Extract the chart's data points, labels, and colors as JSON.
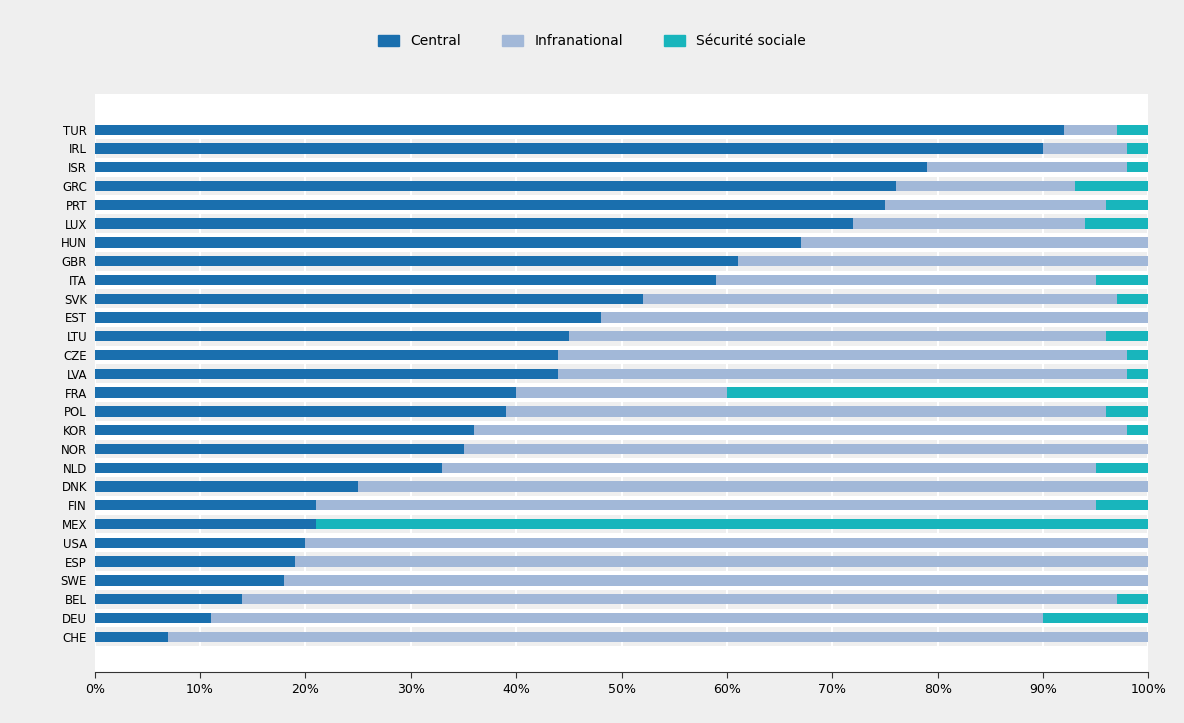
{
  "countries": [
    "TUR",
    "IRL",
    "ISR",
    "GRC",
    "PRT",
    "LUX",
    "HUN",
    "GBR",
    "ITA",
    "SVK",
    "EST",
    "LTU",
    "CZE",
    "LVA",
    "FRA",
    "POL",
    "KOR",
    "NOR",
    "NLD",
    "DNK",
    "FIN",
    "MEX",
    "USA",
    "ESP",
    "SWE",
    "BEL",
    "DEU",
    "CHE"
  ],
  "central": [
    92,
    90,
    79,
    76,
    75,
    72,
    67,
    61,
    59,
    52,
    48,
    45,
    44,
    44,
    40,
    39,
    36,
    35,
    33,
    25,
    21,
    21,
    20,
    19,
    18,
    14,
    11,
    7
  ],
  "infranational": [
    5,
    8,
    19,
    17,
    21,
    22,
    33,
    39,
    36,
    45,
    52,
    51,
    54,
    54,
    20,
    57,
    62,
    65,
    62,
    75,
    74,
    0,
    80,
    81,
    82,
    83,
    79,
    93
  ],
  "social": [
    3,
    2,
    2,
    7,
    4,
    6,
    0,
    0,
    5,
    3,
    0,
    4,
    2,
    2,
    40,
    4,
    2,
    0,
    5,
    0,
    5,
    79,
    0,
    0,
    0,
    3,
    10,
    0
  ],
  "color_central": "#1a6fae",
  "color_infranational": "#a2b8d8",
  "color_social": "#18b5bc",
  "background_color": "#efefef",
  "plot_bg_color": "#ffffff",
  "legend_labels": [
    "Central",
    "Infranational",
    "Sécurité sociale"
  ]
}
